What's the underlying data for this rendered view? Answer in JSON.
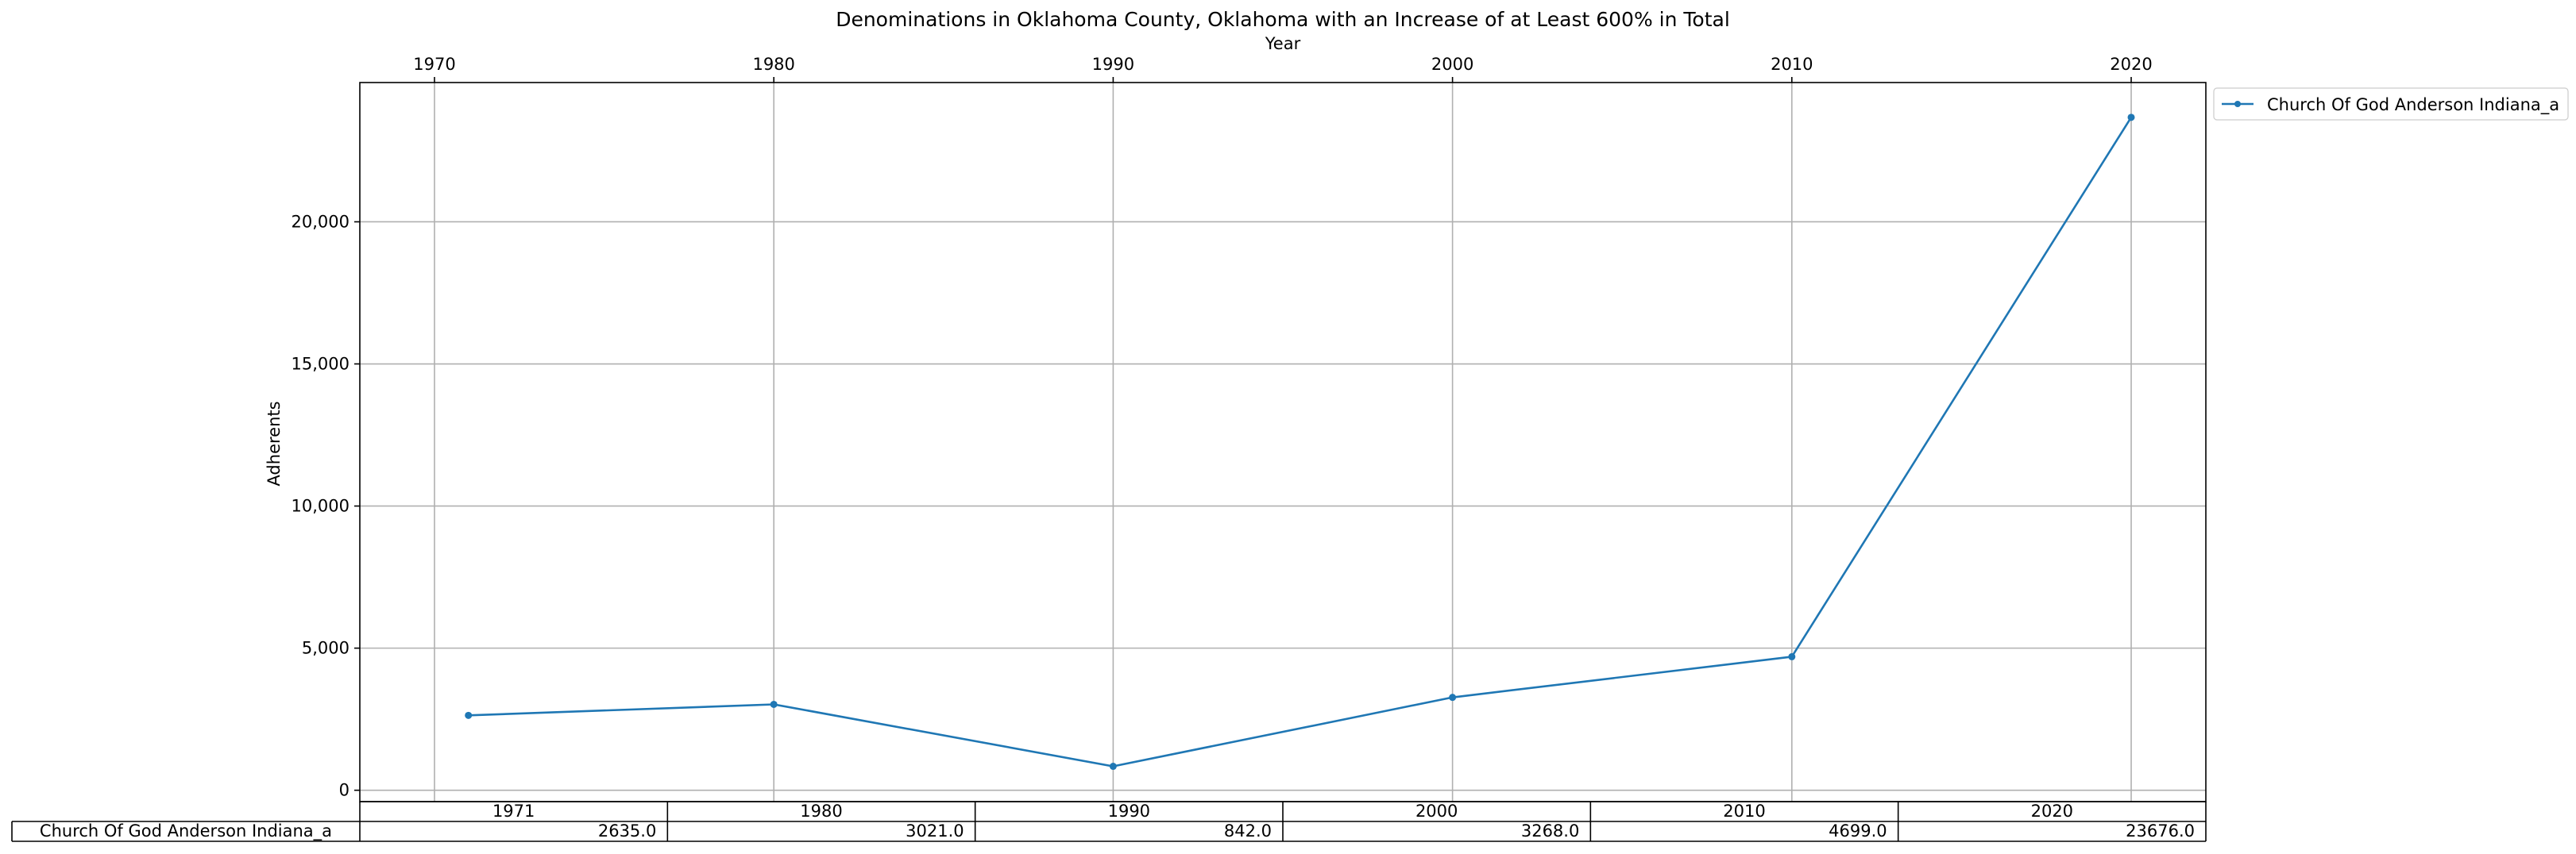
{
  "chart_data": {
    "type": "line",
    "title": "Denominations in Oklahoma County, Oklahoma with an Increase of at Least 600% in Total",
    "xlabel": "Year",
    "ylabel": "Adherents",
    "xlim": [
      1967.8,
      2022.2
    ],
    "ylim": [
      -400,
      24900
    ],
    "x_ticks": [
      "1970",
      "1980",
      "1990",
      "2000",
      "2010",
      "2020"
    ],
    "y_ticks": [
      "0",
      "5,000",
      "10,000",
      "15,000",
      "20,000"
    ],
    "grid": true,
    "legend_position": "upper right, outside plot",
    "color": "#1f77b4",
    "x": [
      1971,
      1980,
      1990,
      2000,
      2010,
      2020
    ],
    "series": [
      {
        "name": "Church Of God Anderson Indiana_a",
        "values": [
          2635,
          3021,
          842,
          3268,
          4699,
          23676
        ]
      }
    ],
    "table": {
      "row_label": "Church Of God Anderson Indiana_a",
      "columns": [
        "1971",
        "1980",
        "1990",
        "2000",
        "2010",
        "2020"
      ],
      "cells": [
        "2635.0",
        "3021.0",
        "842.0",
        "3268.0",
        "4699.0",
        "23676.0"
      ]
    }
  }
}
